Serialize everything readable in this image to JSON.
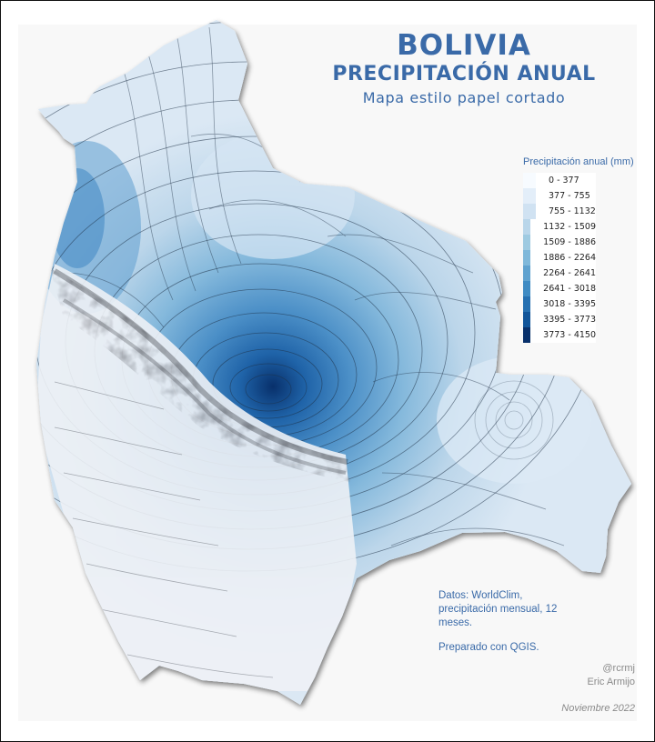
{
  "header": {
    "title": "BOLIVIA",
    "subtitle": "PRECIPITACIÓN ANUAL",
    "tagline": "Mapa estilo papel cortado"
  },
  "legend": {
    "title": "Precipitación anual (mm)",
    "items": [
      {
        "label": "0 - 377",
        "color": "#f7fbff"
      },
      {
        "label": "377 - 755",
        "color": "#e3eef9"
      },
      {
        "label": "755 - 1132",
        "color": "#d0e2f2"
      },
      {
        "label": "1132 - 1509",
        "color": "#b9d6ea"
      },
      {
        "label": "1509 - 1886",
        "color": "#9ecae1"
      },
      {
        "label": "1886 - 2264",
        "color": "#7fb8da"
      },
      {
        "label": "2264 - 2641",
        "color": "#5fa2cf"
      },
      {
        "label": "2641 - 3018",
        "color": "#3f8bc3"
      },
      {
        "label": "3018 - 3395",
        "color": "#2670b1"
      },
      {
        "label": "3395 - 3773",
        "color": "#11559a"
      },
      {
        "label": "3773 - 4150",
        "color": "#08306b"
      }
    ]
  },
  "credits": {
    "source": "Datos: WorldClim, precipitación mensual, 12 meses.",
    "tool": "Preparado con QGIS."
  },
  "author": {
    "handle": "@rcrmj",
    "name": "Eric Armijo"
  },
  "date": "Noviembre 2022",
  "colors": {
    "text_accent": "#3a6aa8",
    "muted": "#8a8a8a",
    "paper": "#f8f8f8"
  }
}
